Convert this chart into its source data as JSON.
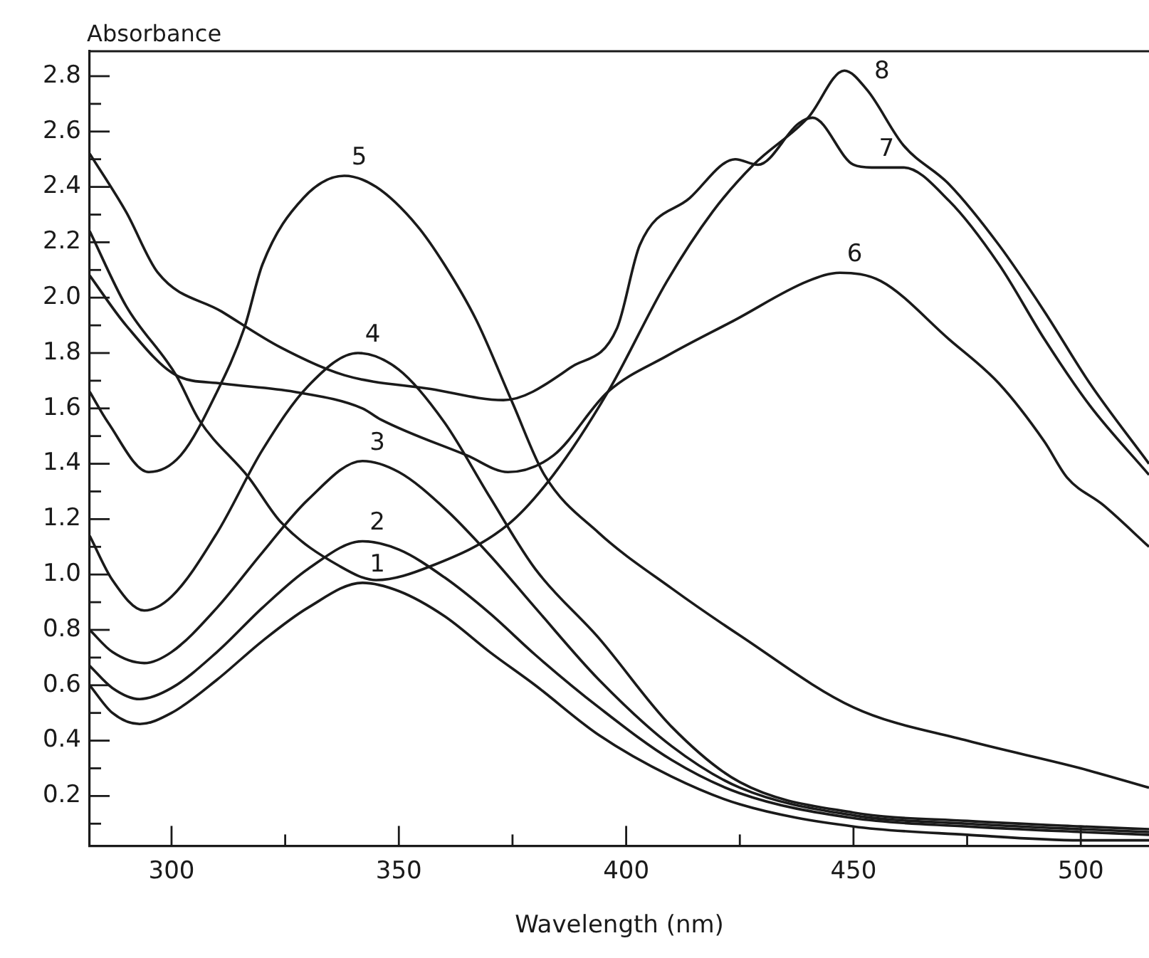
{
  "chart_data": {
    "type": "line",
    "xlabel": "Wavelength (nm)",
    "ylabel": "Absorbance",
    "xlim": [
      282,
      515
    ],
    "ylim": [
      0.02,
      2.89
    ],
    "xticks": [
      300,
      {
        "value": 325,
        "label": null
      },
      350,
      {
        "value": 375,
        "label": null
      },
      400,
      {
        "value": 425,
        "label": null
      },
      450,
      {
        "value": 475,
        "label": null
      },
      500
    ],
    "yticks": [
      {
        "value": 0.1,
        "label": null
      },
      0.2,
      {
        "value": 0.3,
        "label": null
      },
      0.4,
      {
        "value": 0.5,
        "label": null
      },
      0.6,
      {
        "value": 0.7,
        "label": null
      },
      0.8,
      {
        "value": 0.9,
        "label": null
      },
      {
        "value": 1.0,
        "label": "1.0"
      },
      {
        "value": 1.1,
        "label": null
      },
      1.2,
      {
        "value": 1.3,
        "label": null
      },
      1.4,
      {
        "value": 1.5,
        "label": null
      },
      1.6,
      {
        "value": 1.7,
        "label": null
      },
      1.8,
      {
        "value": 1.9,
        "label": null
      },
      {
        "value": 2.0,
        "label": "2.0"
      },
      {
        "value": 2.1,
        "label": null
      },
      2.2,
      {
        "value": 2.3,
        "label": null
      },
      2.4,
      {
        "value": 2.5,
        "label": null
      },
      2.6,
      {
        "value": 2.7,
        "label": null
      },
      2.8
    ],
    "grid": false,
    "legend": false,
    "marker": "none",
    "line_style": "solid",
    "series": [
      {
        "color": "#1a1a1a",
        "x": [
          282,
          287,
          293,
          300,
          310,
          320,
          330,
          342,
          350,
          360,
          370,
          380,
          394,
          410,
          425,
          450,
          475,
          500,
          515
        ],
        "values": [
          0.6,
          0.5,
          0.46,
          0.5,
          0.62,
          0.76,
          0.88,
          0.97,
          0.94,
          0.85,
          0.72,
          0.6,
          0.42,
          0.27,
          0.17,
          0.09,
          0.06,
          0.04,
          0.04
        ]
      },
      {
        "color": "#1a1a1a",
        "x": [
          282,
          287,
          293,
          300,
          310,
          320,
          330,
          342,
          350,
          360,
          370,
          380,
          394,
          410,
          425,
          450,
          475,
          500,
          515
        ],
        "values": [
          0.67,
          0.59,
          0.55,
          0.59,
          0.72,
          0.88,
          1.02,
          1.12,
          1.09,
          0.99,
          0.86,
          0.71,
          0.52,
          0.33,
          0.21,
          0.12,
          0.09,
          0.07,
          0.06
        ]
      },
      {
        "color": "#1a1a1a",
        "x": [
          282,
          287,
          294,
          300,
          310,
          320,
          330,
          342,
          350,
          360,
          370,
          380,
          394,
          410,
          425,
          450,
          475,
          500,
          515
        ],
        "values": [
          0.8,
          0.72,
          0.68,
          0.72,
          0.88,
          1.08,
          1.27,
          1.41,
          1.37,
          1.24,
          1.07,
          0.88,
          0.62,
          0.38,
          0.23,
          0.13,
          0.1,
          0.08,
          0.07
        ]
      },
      {
        "color": "#1a1a1a",
        "x": [
          282,
          287,
          294,
          300,
          310,
          320,
          330,
          341,
          350,
          360,
          370,
          380,
          394,
          410,
          425,
          450,
          475,
          500,
          515
        ],
        "values": [
          1.14,
          0.98,
          0.87,
          0.92,
          1.15,
          1.45,
          1.68,
          1.8,
          1.74,
          1.55,
          1.28,
          1.02,
          0.77,
          0.45,
          0.25,
          0.14,
          0.11,
          0.09,
          0.08
        ]
      },
      {
        "color": "#1a1a1a",
        "x": [
          282,
          286,
          295,
          302,
          310,
          316,
          320,
          329,
          338,
          345,
          354,
          360,
          367,
          375,
          382,
          394,
          410,
          425,
          450,
          475,
          500,
          515
        ],
        "values": [
          1.66,
          1.55,
          1.37,
          1.43,
          1.66,
          1.89,
          2.12,
          2.36,
          2.44,
          2.4,
          2.26,
          2.12,
          1.92,
          1.62,
          1.36,
          1.15,
          0.95,
          0.78,
          0.52,
          0.4,
          0.3,
          0.23
        ]
      },
      {
        "color": "#1a1a1a",
        "x": [
          282,
          290,
          301,
          311,
          327,
          342,
          346,
          365,
          374,
          384,
          396,
          409,
          424,
          440,
          447,
          456,
          471,
          482,
          492,
          497,
          505,
          515
        ],
        "values": [
          2.08,
          1.9,
          1.72,
          1.69,
          1.66,
          1.6,
          1.56,
          1.43,
          1.37,
          1.43,
          1.66,
          1.79,
          1.92,
          2.06,
          2.09,
          2.06,
          1.85,
          1.69,
          1.48,
          1.35,
          1.25,
          1.1
        ]
      },
      {
        "color": "#1a1a1a",
        "x": [
          282,
          290,
          297,
          311,
          324,
          338,
          357,
          373,
          388,
          398,
          403,
          414,
          424,
          429,
          438,
          441,
          450,
          454,
          461,
          471,
          482,
          492,
          502,
          515
        ],
        "values": [
          2.52,
          2.31,
          2.09,
          1.95,
          1.82,
          1.72,
          1.67,
          1.63,
          1.75,
          1.89,
          2.19,
          2.36,
          2.5,
          2.48,
          2.63,
          2.65,
          2.48,
          2.47,
          2.47,
          2.35,
          2.12,
          1.85,
          1.61,
          1.36
        ]
      },
      {
        "color": "#1a1a1a",
        "x": [
          282,
          290,
          301,
          306,
          317,
          324,
          337,
          345,
          357,
          374,
          384,
          396,
          409,
          419,
          428,
          440,
          448,
          453,
          461,
          471,
          482,
          492,
          502,
          515
        ],
        "values": [
          2.24,
          1.97,
          1.72,
          1.56,
          1.35,
          1.19,
          1.03,
          0.98,
          1.03,
          1.18,
          1.36,
          1.66,
          2.06,
          2.31,
          2.48,
          2.65,
          2.82,
          2.75,
          2.55,
          2.41,
          2.19,
          1.95,
          1.69,
          1.4
        ]
      }
    ],
    "annotations": [
      {
        "text": "1",
        "x": 342,
        "y": 0.97
      },
      {
        "text": "2",
        "x": 342,
        "y": 1.12
      },
      {
        "text": "3",
        "x": 342,
        "y": 1.41
      },
      {
        "text": "4",
        "x": 341,
        "y": 1.8
      },
      {
        "text": "5",
        "x": 338,
        "y": 2.44
      },
      {
        "text": "6",
        "x": 447,
        "y": 2.09
      },
      {
        "text": "7",
        "x": 454,
        "y": 2.47
      },
      {
        "text": "8",
        "x": 453,
        "y": 2.75
      }
    ]
  }
}
